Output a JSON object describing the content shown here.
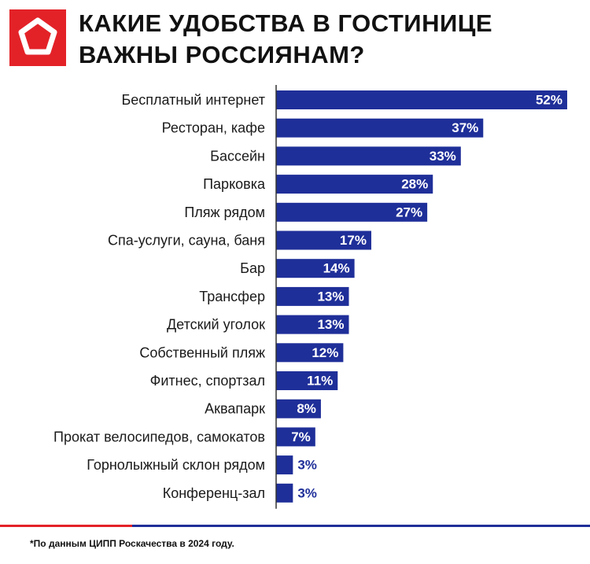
{
  "header": {
    "title_line1": "КАКИЕ УДОБСТВА В ГОСТИНИЦЕ",
    "title_line2": "ВАЖНЫ РОССИЯНАМ?"
  },
  "colors": {
    "bar": "#1f2f99",
    "brand_red": "#e32228",
    "label_inside": "#ffffff",
    "label_outside": "#1f2f99",
    "axis": "#333333"
  },
  "chart_data": {
    "type": "bar",
    "orientation": "horizontal",
    "title": "КАКИЕ УДОБСТВА В ГОСТИНИЦЕ ВАЖНЫ РОССИЯНАМ?",
    "categories": [
      "Бесплатный интернет",
      "Ресторан, кафе",
      "Бассейн",
      "Парковка",
      "Пляж рядом",
      "Спа-услуги, сауна, баня",
      "Бар",
      "Трансфер",
      "Детский уголок",
      "Собственный пляж",
      "Фитнес, спортзал",
      "Аквапарк",
      "Прокат велосипедов, самокатов",
      "Горнолыжный склон рядом",
      "Конференц-зал"
    ],
    "values": [
      52,
      37,
      33,
      28,
      27,
      17,
      14,
      13,
      13,
      12,
      11,
      8,
      7,
      3,
      3
    ],
    "value_labels": [
      "52%",
      "37%",
      "33%",
      "28%",
      "27%",
      "17%",
      "14%",
      "13%",
      "13%",
      "12%",
      "11%",
      "8%",
      "7%",
      "3%",
      "3%"
    ],
    "unit": "%",
    "xlim": [
      0,
      52
    ],
    "xlabel": "",
    "ylabel": "",
    "grid": false,
    "legend": "none"
  },
  "footer": {
    "note": "*По данным ЦИПП Роскачества в 2024 году."
  }
}
